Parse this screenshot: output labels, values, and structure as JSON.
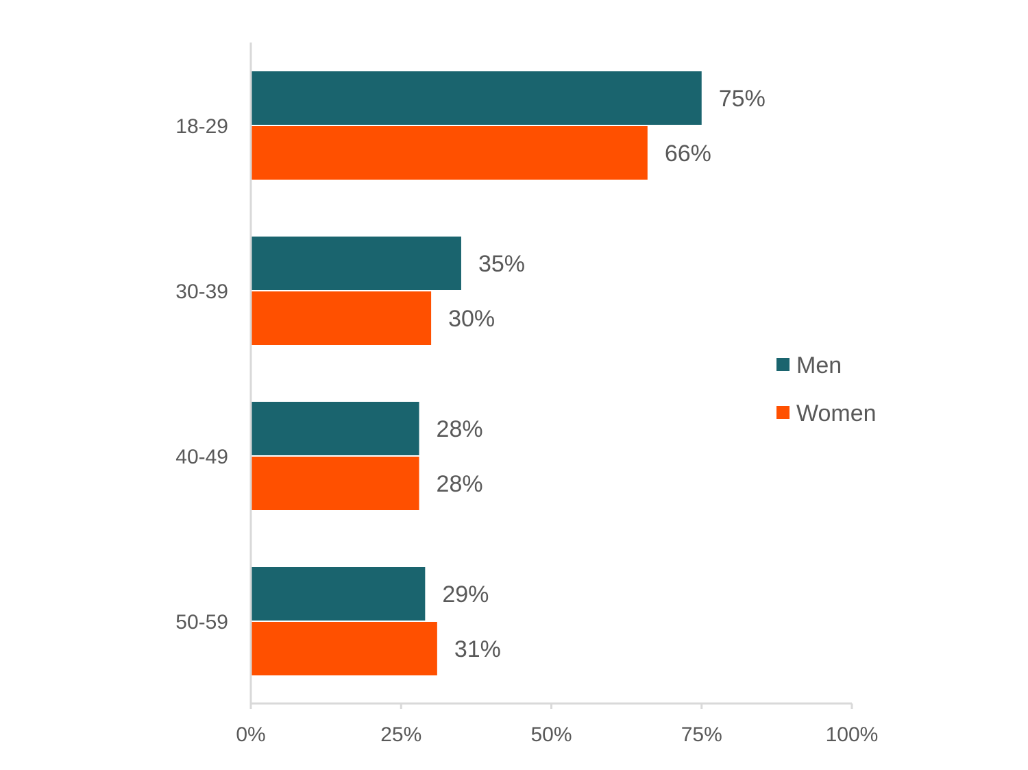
{
  "chart_data": {
    "type": "bar",
    "orientation": "horizontal",
    "categories": [
      "18-29",
      "30-39",
      "40-49",
      "50-59"
    ],
    "series": [
      {
        "name": "Men",
        "color": "#1a646e",
        "values": [
          75,
          35,
          28,
          29
        ],
        "labels": [
          "75%",
          "35%",
          "28%",
          "29%"
        ]
      },
      {
        "name": "Women",
        "color": "#ff5000",
        "values": [
          66,
          30,
          28,
          31
        ],
        "labels": [
          "66%",
          "30%",
          "28%",
          "31%"
        ]
      }
    ],
    "xlim": [
      0,
      100
    ],
    "x_ticks": [
      0,
      25,
      50,
      75,
      100
    ],
    "x_tick_labels": [
      "0%",
      "25%",
      "50%",
      "75%",
      "100%"
    ],
    "grid": false,
    "legend_position": "right"
  }
}
